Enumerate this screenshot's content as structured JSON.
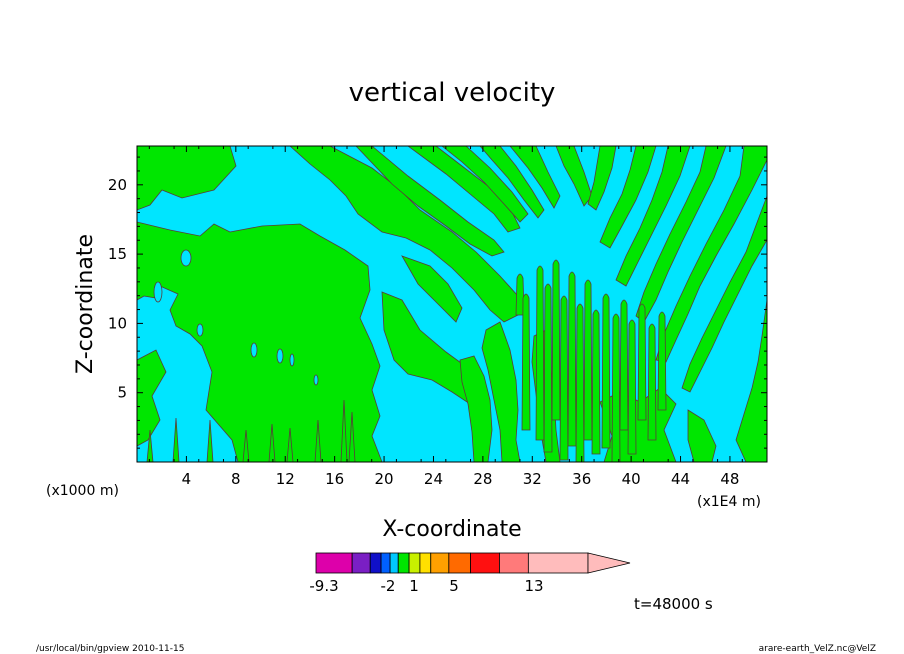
{
  "chart_data": {
    "type": "heatmap",
    "title": "vertical velocity",
    "xlabel": "X-coordinate",
    "ylabel": "Z-coordinate",
    "x_unit_left": "(x1000 m)",
    "x_unit_right": "(x1E4 m)",
    "x_ticks": [
      4,
      8,
      12,
      16,
      20,
      24,
      28,
      32,
      36,
      40,
      44,
      48
    ],
    "y_ticks": [
      5,
      10,
      15,
      20
    ],
    "xlim": [
      0,
      51
    ],
    "ylim": [
      0,
      22.8
    ],
    "colors": {
      "negative_small": "#00e5ff",
      "positive_small": "#00e600",
      "contour": "#5a3a3a"
    },
    "fields": [
      {
        "name": "cyan",
        "color": "#00e5ff"
      },
      {
        "name": "green",
        "color": "#00e600"
      }
    ],
    "colorbar": {
      "labels": [
        "-9.3",
        "-2",
        "1",
        "5",
        "13"
      ],
      "label_positions": [
        0,
        2,
        4,
        6,
        8
      ],
      "levels": [
        {
          "color": "#dd00aa",
          "w": 2
        },
        {
          "color": "#7a1fc4",
          "w": 1
        },
        {
          "color": "#1010c8",
          "w": 0.6
        },
        {
          "color": "#0060ff",
          "w": 0.5
        },
        {
          "color": "#00c8ff",
          "w": 0.45
        },
        {
          "color": "#00e600",
          "w": 0.6
        },
        {
          "color": "#c8f000",
          "w": 0.6
        },
        {
          "color": "#ffe000",
          "w": 0.6
        },
        {
          "color": "#ffa000",
          "w": 1
        },
        {
          "color": "#ff6a00",
          "w": 1.2
        },
        {
          "color": "#ff1010",
          "w": 1.6
        },
        {
          "color": "#ff7a7a",
          "w": 1.6
        },
        {
          "color": "#ffbcbc",
          "w": 3.3
        }
      ]
    },
    "time_label": "t=48000 s"
  },
  "footer": {
    "left": "/usr/local/bin/gpview  2010-11-15",
    "right": "arare-earth_VelZ.nc@VelZ"
  }
}
